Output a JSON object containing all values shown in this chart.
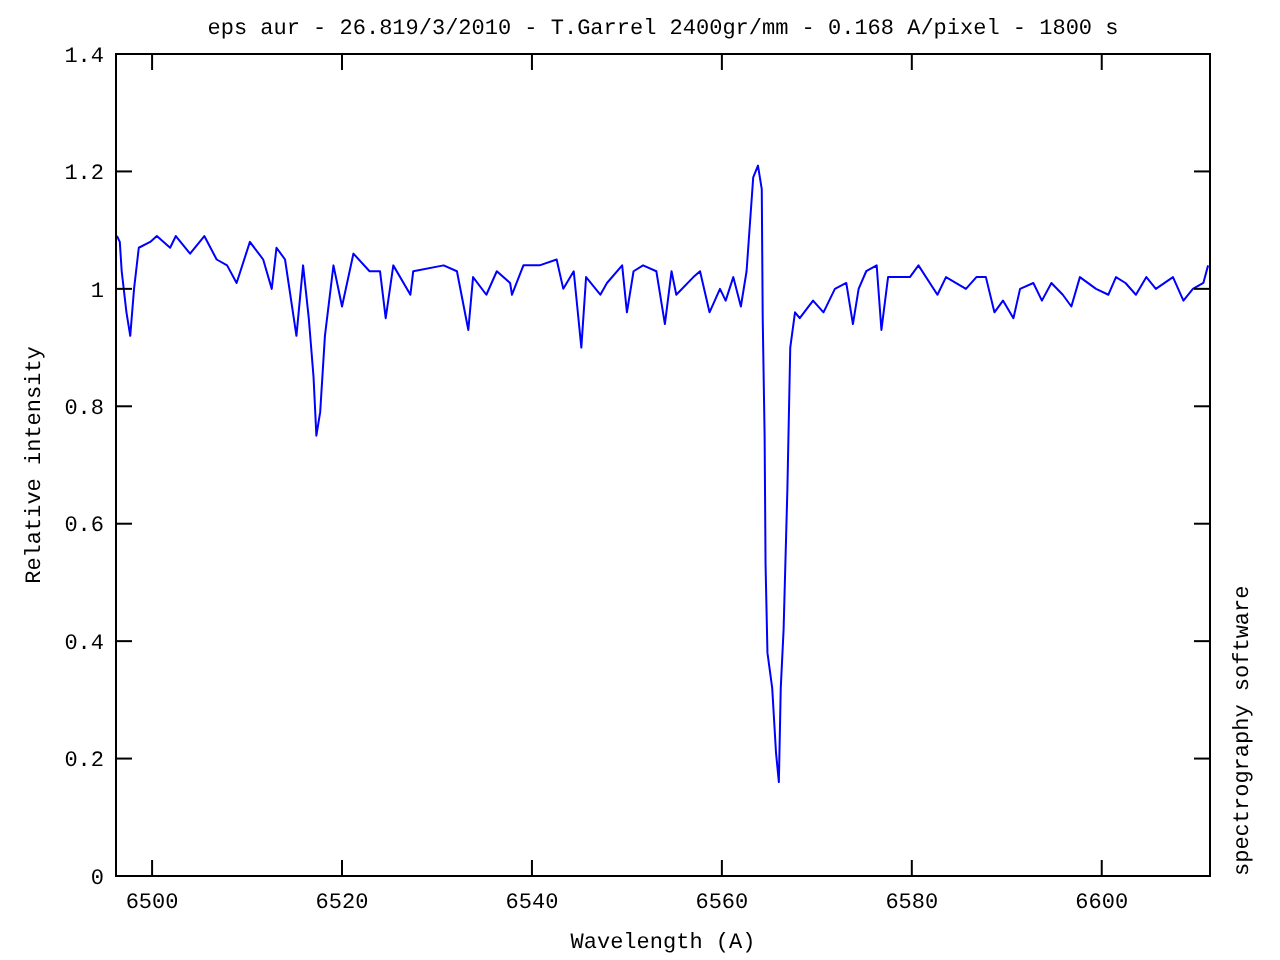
{
  "chart_data": {
    "type": "line",
    "title": "eps aur - 26.819/3/2010 - T.Garrel  2400gr/mm - 0.168 A/pixel - 1800 s",
    "xlabel": "Wavelength (A)",
    "ylabel": "Relative intensity",
    "annotations": [
      "spectrography software"
    ],
    "xlim": [
      6496.2,
      6611.4
    ],
    "ylim": [
      0,
      1.4
    ],
    "xticks": [
      6500,
      6520,
      6540,
      6560,
      6580,
      6600
    ],
    "yticks": [
      0,
      0.2,
      0.4,
      0.6,
      0.8,
      1,
      1.2,
      1.4
    ],
    "grid": false,
    "marker": "none",
    "line_style": "solid",
    "series": [
      {
        "color": "#0000ff",
        "x": [
          6496.3,
          6496.6,
          6496.8,
          6497.3,
          6497.7,
          6498.1,
          6498.6,
          6499.8,
          6500.5,
          6501.9,
          6502.5,
          6504.0,
          6505.5,
          6506.8,
          6507.9,
          6508.9,
          6510.3,
          6511.7,
          6512.6,
          6513.1,
          6514.0,
          6515.2,
          6515.9,
          6516.5,
          6517.0,
          6517.3,
          6517.7,
          6518.2,
          6519.1,
          6520.0,
          6521.2,
          6522.9,
          6524.0,
          6524.6,
          6525.4,
          6527.2,
          6527.5,
          6530.7,
          6532.1,
          6533.3,
          6533.8,
          6535.2,
          6536.3,
          6537.7,
          6537.9,
          6539.1,
          6540.8,
          6542.6,
          6543.3,
          6544.4,
          6545.2,
          6545.7,
          6547.2,
          6547.9,
          6549.5,
          6550.0,
          6550.7,
          6551.7,
          6553.1,
          6554.0,
          6554.7,
          6555.2,
          6557.0,
          6557.7,
          6558.7,
          6559.8,
          6560.4,
          6561.2,
          6562.0,
          6562.6,
          6563.3,
          6563.8,
          6564.2,
          6564.3,
          6564.5,
          6564.6,
          6564.8,
          6565.3,
          6565.7,
          6566.0,
          6566.2,
          6566.5,
          6566.9,
          6567.2,
          6567.7,
          6568.2,
          6569.6,
          6570.7,
          6571.9,
          6573.1,
          6573.8,
          6574.4,
          6575.2,
          6576.3,
          6576.8,
          6577.5,
          6578.6,
          6579.8,
          6580.7,
          6582.7,
          6583.6,
          6585.7,
          6586.8,
          6587.8,
          6588.7,
          6589.6,
          6590.7,
          6591.4,
          6592.8,
          6593.7,
          6594.7,
          6595.9,
          6596.8,
          6597.7,
          6599.4,
          6600.7,
          6601.5,
          6602.5,
          6603.6,
          6604.7,
          6605.7,
          6607.5,
          6608.6,
          6609.6,
          6610.7,
          6611.2
        ],
        "values": [
          1.09,
          1.08,
          1.03,
          0.96,
          0.92,
          1.0,
          1.07,
          1.08,
          1.09,
          1.07,
          1.09,
          1.06,
          1.09,
          1.05,
          1.04,
          1.01,
          1.08,
          1.05,
          1.0,
          1.07,
          1.05,
          0.92,
          1.04,
          0.95,
          0.85,
          0.75,
          0.79,
          0.92,
          1.04,
          0.97,
          1.06,
          1.03,
          1.03,
          0.95,
          1.04,
          0.99,
          1.03,
          1.04,
          1.03,
          0.93,
          1.02,
          0.99,
          1.03,
          1.01,
          0.99,
          1.04,
          1.04,
          1.05,
          1.0,
          1.03,
          0.9,
          1.02,
          0.99,
          1.01,
          1.04,
          0.96,
          1.03,
          1.04,
          1.03,
          0.94,
          1.03,
          0.99,
          1.02,
          1.03,
          0.96,
          1.0,
          0.98,
          1.02,
          0.97,
          1.03,
          1.19,
          1.21,
          1.17,
          0.95,
          0.75,
          0.53,
          0.38,
          0.32,
          0.21,
          0.16,
          0.32,
          0.42,
          0.66,
          0.9,
          0.96,
          0.95,
          0.98,
          0.96,
          1.0,
          1.01,
          0.94,
          1.0,
          1.03,
          1.04,
          0.93,
          1.02,
          1.02,
          1.02,
          1.04,
          0.99,
          1.02,
          1.0,
          1.02,
          1.02,
          0.96,
          0.98,
          0.95,
          1.0,
          1.01,
          0.98,
          1.01,
          0.99,
          0.97,
          1.02,
          1.0,
          0.99,
          1.02,
          1.01,
          0.99,
          1.02,
          1.0,
          1.02,
          0.98,
          1.0,
          1.01,
          1.04
        ]
      }
    ]
  }
}
